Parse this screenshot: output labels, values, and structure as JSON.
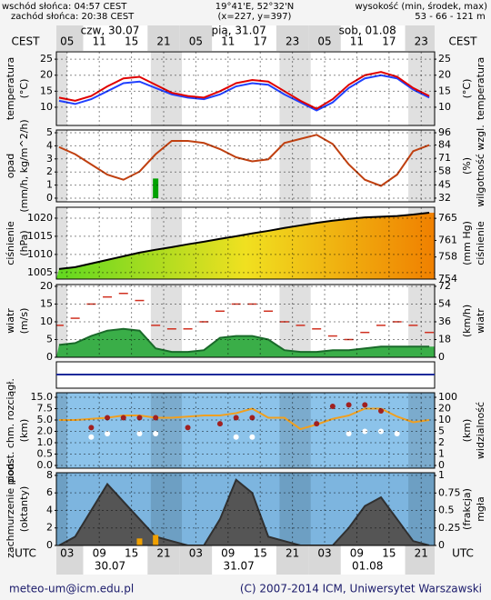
{
  "header": {
    "sunrise": "wschód słońca: 04:57 CEST",
    "sunset": "zachód słońca: 20:38 CEST",
    "coords": "19°41'E, 52°32'N",
    "grid_point": "(x=227, y=397)",
    "elevation_title": "wysokość (min, środek, max)",
    "elevation": "53 - 66 - 121 m"
  },
  "time_axis": {
    "top_label": "CEST",
    "bottom_label": "UTC",
    "top_ticks": [
      {
        "value": 3,
        "label": "05"
      },
      {
        "value": 9,
        "label": "11"
      },
      15,
      21,
      {
        "value": 27,
        "label": "05"
      },
      {
        "value": 33,
        "label": "11"
      },
      {
        "value": 39,
        "label": "17"
      },
      {
        "value": 45,
        "label": "23"
      },
      {
        "value": 51,
        "label": "05"
      },
      {
        "value": 57,
        "label": "11"
      },
      {
        "value": 63,
        "label": "17"
      },
      {
        "value": 69,
        "label": "23"
      }
    ],
    "bottom_ticks": [
      {
        "value": 3,
        "label": "03"
      },
      {
        "value": 9,
        "label": "09"
      },
      15,
      21,
      {
        "value": 27,
        "label": "03"
      },
      {
        "value": 33,
        "label": "09"
      },
      {
        "value": 39,
        "label": "15"
      },
      {
        "value": 45,
        "label": "21"
      },
      {
        "value": 51,
        "label": "03"
      },
      {
        "value": 57,
        "label": "09"
      },
      {
        "value": 63,
        "label": "15"
      },
      {
        "value": 69,
        "label": "21"
      }
    ],
    "top_days": [
      "czw, 30.07",
      "pią, 31.07",
      "sob, 01.08"
    ],
    "bottom_days": [
      "30.07",
      "31.07",
      "01.08"
    ]
  },
  "chart_data": [
    {
      "type": "combo",
      "ylabel": [
        "temperatura",
        "(°C)"
      ],
      "y2label": [
        "(°C)",
        "temperatura"
      ],
      "grid": true,
      "background": "#ffffff",
      "x": [
        1.5,
        4.5,
        7.5,
        10.5,
        13.5,
        16.5,
        19.5,
        22.5,
        25.5,
        28.5,
        31.5,
        34.5,
        37.5,
        40.5,
        43.5,
        46.5,
        49.5,
        52.5,
        55.5,
        58.5,
        61.5,
        64.5,
        67.5,
        70.5
      ],
      "xlim": [
        1,
        71.5
      ],
      "ylim": [
        4.3,
        27.3
      ],
      "yticks": [
        10,
        15,
        20,
        25
      ],
      "y2lim": [
        4.3,
        27.3
      ],
      "y2ticks": [
        10,
        15,
        20,
        25
      ],
      "series": [
        {
          "type": "line",
          "color": "#2040ff",
          "values": [
            12,
            11,
            12.5,
            15,
            17.5,
            18,
            16,
            14,
            13,
            12.5,
            14,
            16.5,
            17.5,
            17,
            14,
            11.5,
            9,
            11.5,
            16,
            19,
            20,
            19,
            15.5,
            13
          ]
        },
        {
          "type": "line",
          "color": "#e00000",
          "values": [
            13,
            12,
            13.5,
            16.5,
            19,
            19.5,
            17,
            14.5,
            13.5,
            13,
            15,
            17.5,
            18.5,
            18,
            15,
            12,
            9.5,
            12.5,
            17,
            20,
            21,
            19.5,
            16,
            13.5
          ]
        }
      ]
    },
    {
      "type": "combo",
      "ylabel": [
        "opad",
        "(mm/h, kg/m^2/h)"
      ],
      "y2label": [
        "(%)",
        "wilgotność wzgl."
      ],
      "grid": true,
      "background": "#ffffff",
      "x": [
        1.5,
        4.5,
        7.5,
        10.5,
        13.5,
        16.5,
        19.5,
        22.5,
        25.5,
        28.5,
        31.5,
        34.5,
        37.5,
        40.5,
        43.5,
        46.5,
        49.5,
        52.5,
        55.5,
        58.5,
        61.5,
        64.5,
        67.5,
        70.5
      ],
      "xlim": [
        1,
        71.5
      ],
      "ylim": [
        -0.28,
        5.21
      ],
      "yticks": [
        0,
        1,
        2,
        3,
        4,
        5
      ],
      "y2lim": [
        28.4,
        98.7
      ],
      "y2ticks": [
        32,
        45,
        58,
        71,
        84,
        96
      ],
      "series": [
        {
          "type": "bar",
          "color": "#00a000",
          "values": [
            0,
            0,
            0,
            0,
            0,
            0,
            1.5,
            0,
            0,
            0,
            0,
            0,
            0,
            0,
            0,
            0,
            0,
            0,
            0,
            0,
            0,
            0,
            0,
            0
          ]
        },
        {
          "type": "line",
          "axis": "y2",
          "color": "#c04010",
          "values": [
            82,
            75,
            65,
            55,
            50,
            58,
            75,
            88,
            88,
            86,
            80,
            72,
            68,
            70,
            86,
            90,
            94,
            85,
            65,
            50,
            44,
            55,
            78,
            84
          ]
        }
      ]
    },
    {
      "type": "combo",
      "ylabel": [
        "ciśnienie",
        "(hPa)"
      ],
      "y2label": [
        "(mm Hg)",
        "ciśnienie"
      ],
      "grid": true,
      "background": "#ffffff",
      "x": [
        1.5,
        4.5,
        7.5,
        10.5,
        13.5,
        16.5,
        19.5,
        22.5,
        25.5,
        28.5,
        31.5,
        34.5,
        37.5,
        40.5,
        43.5,
        46.5,
        49.5,
        52.5,
        55.5,
        58.5,
        61.5,
        64.5,
        67.5,
        70.5
      ],
      "xlim": [
        1,
        71.5
      ],
      "ylim": [
        1003.2,
        1023
      ],
      "yticks": [
        1005,
        1010,
        1015,
        1020
      ],
      "y2lim": [
        754,
        767
      ],
      "y2ticks": [
        754,
        758,
        761,
        765
      ],
      "series": [
        {
          "type": "area",
          "color": "#000000",
          "fill_gradient": [
            "#60d820",
            "#f0e020",
            "#f08000"
          ],
          "values": [
            1006,
            1006.5,
            1007.5,
            1008.5,
            1009.5,
            1010.5,
            1011.3,
            1012,
            1012.8,
            1013.5,
            1014.3,
            1015,
            1015.8,
            1016.5,
            1017.3,
            1018,
            1018.7,
            1019.3,
            1019.8,
            1020.2,
            1020.4,
            1020.6,
            1021,
            1021.5
          ]
        }
      ]
    },
    {
      "type": "combo",
      "ylabel": [
        "wiatr",
        "(m/s)"
      ],
      "y2label": [
        "(km/h)",
        "wiatr"
      ],
      "grid": true,
      "background": "#ffffff",
      "x": [
        1.5,
        4.5,
        7.5,
        10.5,
        13.5,
        16.5,
        19.5,
        22.5,
        25.5,
        28.5,
        31.5,
        34.5,
        37.5,
        40.5,
        43.5,
        46.5,
        49.5,
        52.5,
        55.5,
        58.5,
        61.5,
        64.5,
        67.5,
        70.5
      ],
      "xlim": [
        1,
        71.5
      ],
      "ylim": [
        0,
        20.5
      ],
      "yticks": [
        0,
        5,
        10,
        15,
        20
      ],
      "y2lim": [
        0,
        73.8
      ],
      "y2ticks": [
        0,
        18,
        36,
        54,
        72
      ],
      "series": [
        {
          "type": "area",
          "color": "#1a6a2a",
          "fill": "#3aae48",
          "values": [
            3.5,
            4,
            6,
            7.5,
            8,
            7.5,
            2.5,
            1.5,
            1.5,
            2,
            5.5,
            6,
            6,
            5,
            2,
            1.5,
            1.5,
            2,
            2,
            2.5,
            3,
            3,
            3,
            3
          ]
        },
        {
          "type": "dash",
          "color": "#d03020",
          "values": [
            9,
            11,
            15,
            17,
            18,
            16,
            9,
            8,
            8,
            10,
            13,
            15,
            15,
            13,
            10,
            9,
            8,
            6,
            5,
            7,
            9,
            10,
            9,
            7
          ]
        }
      ]
    },
    {
      "type": "combo",
      "ylabel": [
        "podst. chm. rozciągł.",
        "(km)"
      ],
      "y2label": [
        "(km)",
        "widzialność"
      ],
      "grid": true,
      "background": "#8cc3ea",
      "yscale": "piecewise",
      "x": [
        1.5,
        4.5,
        7.5,
        10.5,
        13.5,
        16.5,
        19.5,
        22.5,
        25.5,
        28.5,
        31.5,
        34.5,
        37.5,
        40.5,
        43.5,
        46.5,
        49.5,
        52.5,
        55.5,
        58.5,
        61.5,
        64.5,
        67.5,
        70.5
      ],
      "xlim": [
        1,
        71.5
      ],
      "ylim": [
        0,
        15
      ],
      "yticks": [
        {
          "value": 0,
          "label": "0.0"
        },
        0.5,
        {
          "value": 1,
          "label": "1.0"
        },
        {
          "value": 2,
          "label": "2.0"
        },
        {
          "value": 5,
          "label": "5.0"
        },
        7.5,
        {
          "value": 15,
          "label": "15.0"
        }
      ],
      "y2lim": [
        0,
        100
      ],
      "y2ticks": [
        0,
        1,
        2,
        5,
        10,
        20,
        100
      ],
      "series": [
        {
          "type": "line",
          "axis": "y2",
          "color": "#f0a020",
          "values": [
            10,
            10,
            11,
            12,
            14,
            14,
            12,
            12,
            13,
            14,
            14,
            16,
            20,
            12,
            12,
            6,
            8,
            11,
            14,
            20,
            20,
            13,
            9,
            10
          ]
        },
        {
          "type": "scatter",
          "color": "#a02020",
          "values": [
            null,
            null,
            3,
            5.5,
            5.5,
            5.5,
            5.5,
            null,
            3,
            null,
            4,
            5.5,
            5.5,
            null,
            null,
            null,
            4,
            9,
            10,
            10,
            7,
            null,
            null,
            null
          ]
        },
        {
          "type": "scatter",
          "color": "#ffffff",
          "values": [
            null,
            null,
            1.5,
            1.8,
            null,
            1.8,
            1.8,
            null,
            null,
            null,
            null,
            1.5,
            1.5,
            null,
            null,
            null,
            null,
            null,
            1.8,
            2,
            2,
            1.8,
            null,
            null
          ]
        }
      ]
    },
    {
      "type": "combo",
      "ylabel": [
        "zachmurzenie pion.",
        "(oktanty)"
      ],
      "y2label": [
        "(frakcja)",
        "mgła"
      ],
      "grid": true,
      "background": "#7db5df",
      "x": [
        1.5,
        4.5,
        7.5,
        10.5,
        13.5,
        16.5,
        19.5,
        22.5,
        25.5,
        28.5,
        31.5,
        34.5,
        37.5,
        40.5,
        43.5,
        46.5,
        49.5,
        52.5,
        55.5,
        58.5,
        61.5,
        64.5,
        67.5,
        70.5
      ],
      "xlim": [
        1,
        71.5
      ],
      "ylim": [
        0,
        8.3
      ],
      "yticks": [
        0,
        2,
        4,
        6,
        8
      ],
      "y2lim": [
        0,
        1.04
      ],
      "y2ticks": [
        0,
        0.25,
        0.5,
        0.75,
        1
      ],
      "series": [
        {
          "type": "area",
          "color": "#303030",
          "fill": "#555555",
          "values": [
            0,
            1,
            4,
            7,
            5,
            3,
            1,
            0.5,
            0,
            0,
            3,
            7.5,
            6,
            1,
            0.5,
            0,
            0,
            0,
            2,
            4.5,
            5.5,
            3,
            0.5,
            0
          ]
        },
        {
          "type": "bar",
          "axis": "y2",
          "color": "#f0a000",
          "values": [
            0,
            0,
            0,
            0,
            0,
            0.1,
            0.15,
            0,
            0,
            0,
            0,
            0,
            0,
            0,
            0,
            0,
            0,
            0,
            0,
            0,
            0,
            0,
            0,
            0
          ]
        }
      ]
    }
  ],
  "footer": {
    "email": "meteo-um@icm.edu.pl",
    "copyright": "(C) 2007-2014 ICM, Uniwersytet Warszawski"
  }
}
